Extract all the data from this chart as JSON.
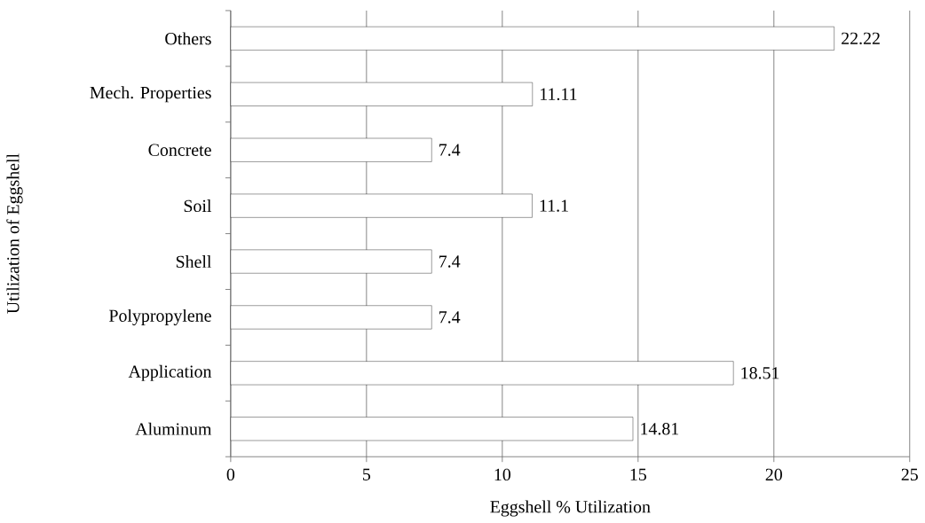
{
  "chart_data": {
    "type": "bar",
    "orientation": "horizontal",
    "xlabel": "Eggshell % Utilization",
    "ylabel": "Utilization of Eggshell",
    "categories": [
      "Others",
      "Mech. Properties",
      "Concrete",
      "Soil",
      "Shell",
      "Polypropylene",
      "Application",
      "Aluminum"
    ],
    "values": [
      22.22,
      11.11,
      7.4,
      11.1,
      7.4,
      7.4,
      18.51,
      14.81
    ],
    "color": "#ffffff",
    "xlim": [
      0,
      25
    ],
    "xticks": [
      0,
      5,
      10,
      15,
      20,
      25
    ],
    "grid": "x",
    "data_labels": true
  }
}
